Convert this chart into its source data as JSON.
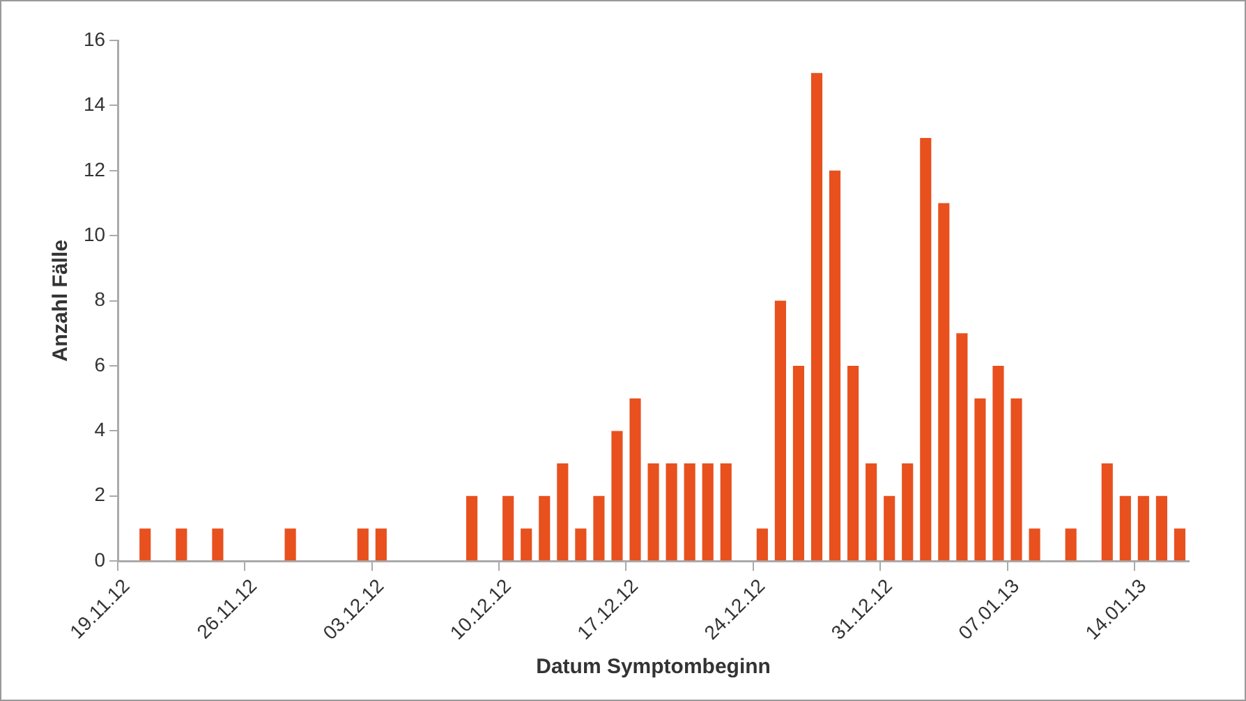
{
  "chart_data": {
    "type": "bar",
    "xlabel": "Datum Symptombeginn",
    "ylabel": "Anzahl Fälle",
    "categories": [
      "19.11.12",
      null,
      null,
      null,
      null,
      null,
      null,
      "26.11.12",
      null,
      null,
      null,
      null,
      null,
      null,
      "03.12.12",
      null,
      null,
      null,
      null,
      null,
      null,
      "10.12.12",
      null,
      null,
      null,
      null,
      null,
      null,
      "17.12.12",
      null,
      null,
      null,
      null,
      null,
      null,
      "24.12.12",
      null,
      null,
      null,
      null,
      null,
      null,
      "31.12.12",
      null,
      null,
      null,
      null,
      null,
      null,
      "07.01.13",
      null,
      null,
      null,
      null,
      null,
      null,
      "14.01.13",
      null,
      null
    ],
    "values": [
      0,
      1,
      0,
      1,
      0,
      1,
      0,
      0,
      0,
      1,
      0,
      0,
      0,
      1,
      1,
      0,
      0,
      0,
      0,
      2,
      0,
      2,
      1,
      2,
      3,
      1,
      2,
      4,
      5,
      3,
      3,
      3,
      3,
      3,
      0,
      1,
      8,
      6,
      15,
      12,
      6,
      3,
      2,
      3,
      13,
      11,
      7,
      5,
      6,
      5,
      1,
      0,
      1,
      0,
      3,
      2,
      2,
      2,
      1
    ],
    "color": "#e8501e",
    "ylim": [
      0,
      16
    ],
    "yticks": [
      0,
      2,
      4,
      6,
      8,
      10,
      12,
      14,
      16
    ],
    "grid": false,
    "legend": false
  }
}
